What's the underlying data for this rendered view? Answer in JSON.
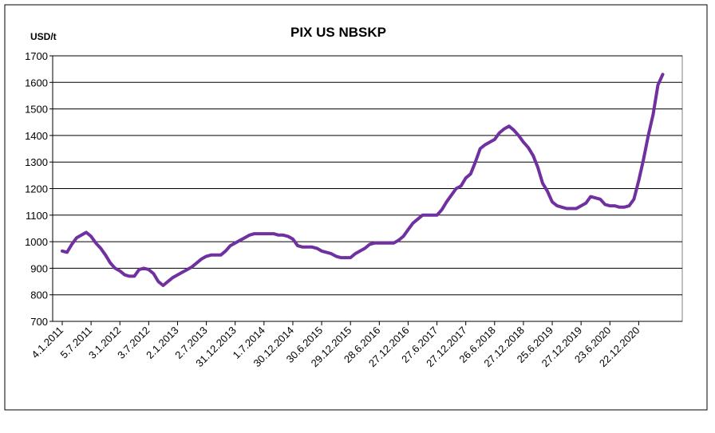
{
  "chart_data": {
    "type": "line",
    "title": "PIX US NBSKP",
    "y_axis_label": "USD/t",
    "categories": [
      "4.1.2011",
      null,
      null,
      null,
      null,
      null,
      "5.7.2011",
      null,
      null,
      null,
      null,
      null,
      "3.1.2012",
      null,
      null,
      null,
      null,
      null,
      "3.7.2012",
      null,
      null,
      null,
      null,
      null,
      "2.1.2013",
      null,
      null,
      null,
      null,
      null,
      "2.7.2013",
      null,
      null,
      null,
      null,
      null,
      "31.12.2013",
      null,
      null,
      null,
      null,
      null,
      "1.7.2014",
      null,
      null,
      null,
      null,
      null,
      "30.12.2014",
      null,
      null,
      null,
      null,
      null,
      "30.6.2015",
      null,
      null,
      null,
      null,
      null,
      "29.12.2015",
      null,
      null,
      null,
      null,
      null,
      "28.6.2016",
      null,
      null,
      null,
      null,
      null,
      "27.12.2016",
      null,
      null,
      null,
      null,
      null,
      "27.6.2017",
      null,
      null,
      null,
      null,
      null,
      "27.12.2017",
      null,
      null,
      null,
      null,
      null,
      "26.6.2018",
      null,
      null,
      null,
      null,
      null,
      "27.12.2018",
      null,
      null,
      null,
      null,
      null,
      "25.6.2019",
      null,
      null,
      null,
      null,
      null,
      "27.12.2019",
      null,
      null,
      null,
      null,
      null,
      "23.6.2020",
      null,
      null,
      null,
      null,
      null,
      "22.12.2020",
      null,
      null,
      null,
      null,
      null
    ],
    "values": [
      965,
      960,
      990,
      1015,
      1025,
      1035,
      1020,
      995,
      975,
      950,
      920,
      900,
      890,
      875,
      870,
      870,
      895,
      900,
      895,
      880,
      850,
      835,
      850,
      865,
      875,
      885,
      895,
      905,
      920,
      935,
      945,
      950,
      950,
      950,
      965,
      985,
      995,
      1005,
      1015,
      1025,
      1030,
      1030,
      1030,
      1030,
      1030,
      1025,
      1025,
      1020,
      1010,
      985,
      980,
      980,
      980,
      975,
      965,
      960,
      955,
      945,
      940,
      940,
      940,
      955,
      965,
      975,
      990,
      995,
      995,
      995,
      995,
      995,
      1005,
      1020,
      1045,
      1070,
      1085,
      1100,
      1100,
      1100,
      1100,
      1120,
      1150,
      1175,
      1200,
      1210,
      1240,
      1255,
      1300,
      1350,
      1365,
      1375,
      1385,
      1410,
      1425,
      1435,
      1420,
      1400,
      1375,
      1355,
      1325,
      1280,
      1220,
      1190,
      1150,
      1135,
      1130,
      1125,
      1125,
      1125,
      1135,
      1145,
      1170,
      1165,
      1160,
      1140,
      1135,
      1135,
      1130,
      1130,
      1135,
      1160,
      1230,
      1310,
      1400,
      1480,
      1590,
      1630
    ],
    "color": "#7030a0",
    "ylim": [
      700,
      1700
    ],
    "yticks": [
      700,
      800,
      900,
      1000,
      1100,
      1200,
      1300,
      1400,
      1500,
      1600,
      1700
    ],
    "grid": true
  }
}
